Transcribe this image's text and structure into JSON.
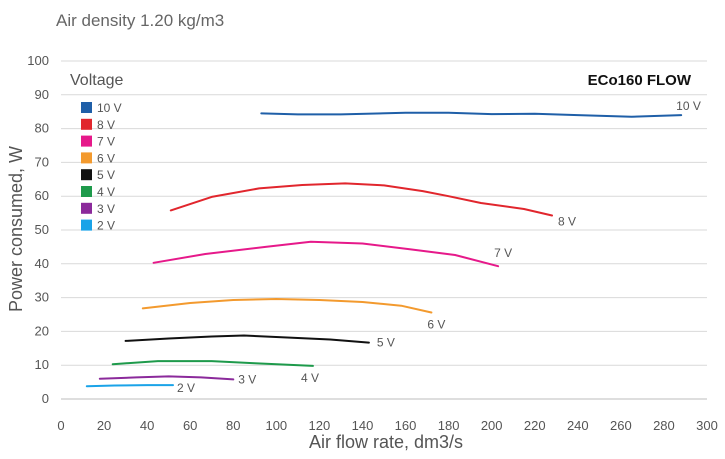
{
  "chart_data": {
    "type": "line",
    "title": "ECo160 FLOW",
    "subtitle": "Air density 1.20 kg/m3",
    "xlabel": "Air flow rate, dm3/s",
    "ylabel": "Power consumed, W",
    "xlim": [
      0,
      300
    ],
    "ylim": [
      0,
      100
    ],
    "x_ticks": [
      "0",
      "20",
      "40",
      "60",
      "80",
      "100",
      "120",
      "140",
      "160",
      "180",
      "200",
      "220",
      "240",
      "260",
      "280",
      "300"
    ],
    "y_ticks": [
      "0",
      "10",
      "20",
      "30",
      "40",
      "50",
      "60",
      "70",
      "80",
      "90",
      "100"
    ],
    "grid": "horizontal",
    "legend_title": "Voltage",
    "legend_position": "top-left",
    "series": [
      {
        "name": "10 V",
        "end_label": "10 V",
        "color": "#1f5fa8",
        "points": [
          [
            93,
            84.5
          ],
          [
            110,
            84.2
          ],
          [
            130,
            84.2
          ],
          [
            160,
            84.7
          ],
          [
            180,
            84.7
          ],
          [
            200,
            84.3
          ],
          [
            220,
            84.4
          ],
          [
            240,
            84.0
          ],
          [
            265,
            83.5
          ],
          [
            288,
            84.0
          ]
        ]
      },
      {
        "name": "8 V",
        "end_label": "8 V",
        "color": "#e1262d",
        "points": [
          [
            51,
            55.8
          ],
          [
            70,
            59.8
          ],
          [
            92,
            62.3
          ],
          [
            112,
            63.3
          ],
          [
            132,
            63.8
          ],
          [
            150,
            63.2
          ],
          [
            168,
            61.5
          ],
          [
            180,
            60.0
          ],
          [
            195,
            58.0
          ],
          [
            215,
            56.2
          ],
          [
            228,
            54.3
          ]
        ]
      },
      {
        "name": "7 V",
        "end_label": "7 V",
        "color": "#e6198a",
        "points": [
          [
            43,
            40.3
          ],
          [
            67,
            42.9
          ],
          [
            95,
            45.0
          ],
          [
            116,
            46.5
          ],
          [
            140,
            46.0
          ],
          [
            162,
            44.3
          ],
          [
            183,
            42.6
          ],
          [
            203,
            39.3
          ]
        ]
      },
      {
        "name": "6 V",
        "end_label": "6 V",
        "color": "#f39a2e",
        "points": [
          [
            38,
            26.8
          ],
          [
            60,
            28.4
          ],
          [
            80,
            29.3
          ],
          [
            100,
            29.6
          ],
          [
            120,
            29.3
          ],
          [
            140,
            28.7
          ],
          [
            158,
            27.6
          ],
          [
            172,
            25.6
          ]
        ]
      },
      {
        "name": "5 V",
        "end_label": "5 V",
        "color": "#111111",
        "points": [
          [
            30,
            17.2
          ],
          [
            50,
            17.9
          ],
          [
            70,
            18.5
          ],
          [
            85,
            18.8
          ],
          [
            105,
            18.2
          ],
          [
            125,
            17.6
          ],
          [
            143,
            16.7
          ]
        ]
      },
      {
        "name": "4 V",
        "end_label": "4 V",
        "color": "#1e9a4b",
        "points": [
          [
            24,
            10.3
          ],
          [
            45,
            11.2
          ],
          [
            70,
            11.2
          ],
          [
            90,
            10.6
          ],
          [
            117,
            9.8
          ]
        ]
      },
      {
        "name": "3 V",
        "end_label": "3 V",
        "color": "#8b2a9b",
        "points": [
          [
            18,
            6.0
          ],
          [
            35,
            6.4
          ],
          [
            50,
            6.7
          ],
          [
            65,
            6.4
          ],
          [
            80,
            5.8
          ]
        ]
      },
      {
        "name": "2 V",
        "end_label": "2 V",
        "color": "#1aa3e8",
        "points": [
          [
            12,
            3.8
          ],
          [
            25,
            4.0
          ],
          [
            40,
            4.1
          ],
          [
            52,
            4.1
          ]
        ]
      }
    ]
  }
}
